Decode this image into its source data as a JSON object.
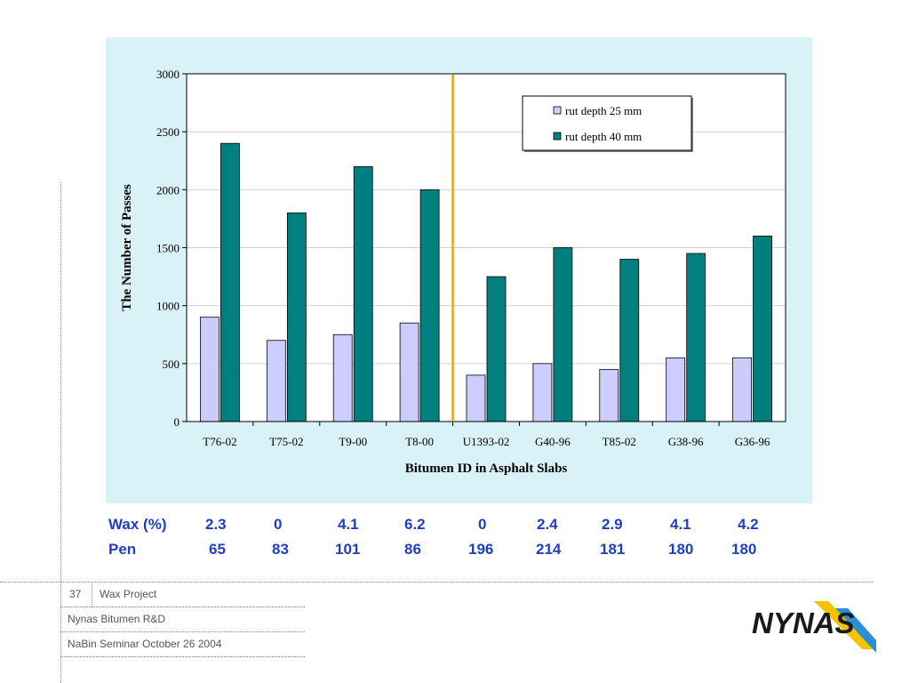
{
  "chart_data": {
    "type": "bar",
    "categories": [
      "T76-02",
      "T75-02",
      "T9-00",
      "T8-00",
      "U1393-02",
      "G40-96",
      "T85-02",
      "G38-96",
      "G36-96"
    ],
    "series": [
      {
        "name": "rut depth 25 mm",
        "values": [
          900,
          700,
          750,
          850,
          400,
          500,
          450,
          550,
          550
        ],
        "color": "#ccccff"
      },
      {
        "name": "rut depth 40 mm",
        "values": [
          2400,
          1800,
          2200,
          2000,
          1250,
          1500,
          1400,
          1450,
          1600
        ],
        "color": "#007f7f"
      }
    ],
    "xlabel": "Bitumen ID in Asphalt Slabs",
    "ylabel": "The Number of Passes",
    "ylim": [
      0,
      3000
    ],
    "yticks": [
      "0",
      "500",
      "1000",
      "1500",
      "2000",
      "2500",
      "3000"
    ],
    "grid": true,
    "legend_position": "top-right",
    "divider_after_category": "T8-00",
    "divider_color": "#f0a020",
    "plot_background": "#ffffff",
    "panel_background": "#d9f2f7"
  },
  "table": {
    "wax_label": "Wax (%)",
    "wax_values": [
      "2.3",
      "0",
      "4.1",
      "6.2",
      "0",
      "2.4",
      "2.9",
      "4.1",
      "4.2"
    ],
    "pen_label": "Pen",
    "pen_values": [
      "65",
      "83",
      "101",
      "86",
      "196",
      "214",
      "181",
      "180",
      "180"
    ],
    "text_color": "#1f3fbf"
  },
  "footer": {
    "page_number": "37",
    "project": "Wax Project",
    "company": "Nynas Bitumen R&D",
    "event": "NaBin Seminar October 26 2004"
  },
  "logo": {
    "text": "NYNAS",
    "color": "#1a1a1a",
    "stripe_colors": [
      "#f5c400",
      "#2b8fd6"
    ]
  }
}
